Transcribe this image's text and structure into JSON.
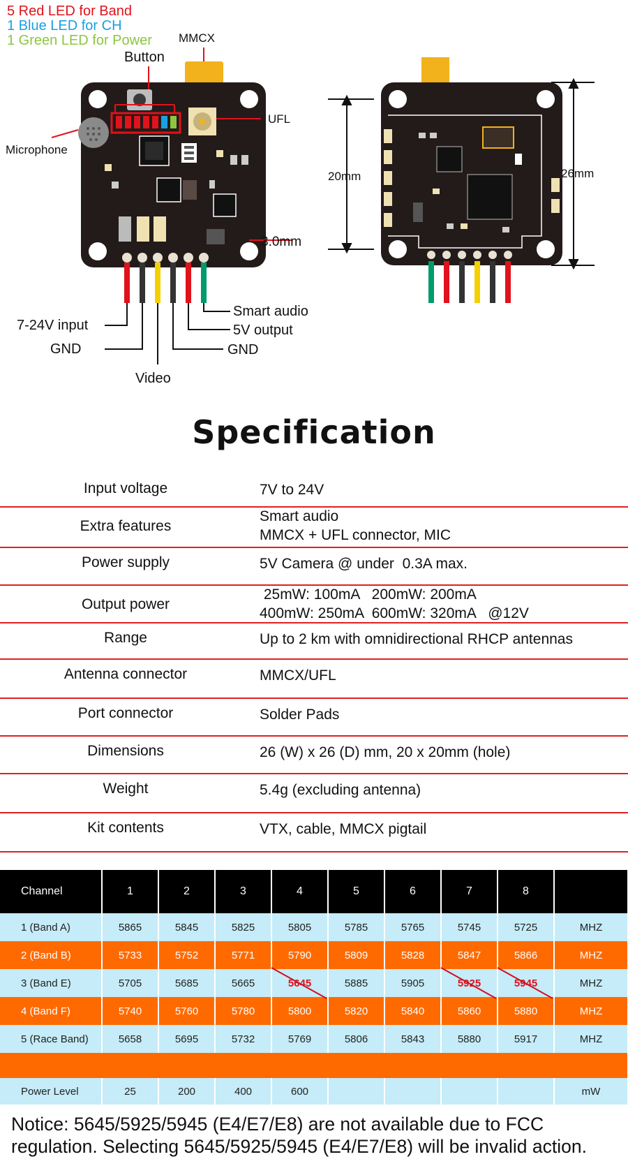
{
  "legend": {
    "red_leds": "5 Red LED for Band",
    "blue_led": "1 Blue LED for CH",
    "green_led": "1 Green LED for Power"
  },
  "callouts": {
    "mmcx": "MMCX",
    "button": "Button",
    "ufl": "UFL",
    "microphone": "Microphone",
    "hole_size": "3.0mm",
    "dim_20": "20mm",
    "dim_26": "26mm"
  },
  "wire_labels": {
    "input": "7-24V input",
    "gnd_left": "GND",
    "video": "Video",
    "smart_audio": "Smart audio",
    "output_5v": "5V output",
    "gnd_right": "GND"
  },
  "colors": {
    "legend_red": "#e0121b",
    "legend_blue": "#1a9fe0",
    "legend_green": "#8cc63f",
    "separator": "#e02020",
    "table_header": "#000000",
    "row_light": "#c5ecf8",
    "row_orange": "#ff6a00"
  },
  "spec": {
    "title": "Specification",
    "rows": [
      {
        "key": "Input voltage",
        "value": "7V to 24V"
      },
      {
        "key": "Extra features",
        "value": "Smart audio\nMMCX + UFL connector, MIC"
      },
      {
        "key": "Power supply",
        "value": "5V Camera @ under  0.3A max."
      },
      {
        "key": "Output power",
        "value": " 25mW: 100mA   200mW: 200mA\n400mW: 250mA  600mW: 320mA   @12V"
      },
      {
        "key": "Range",
        "value": "Up to 2 km with omnidirectional RHCP antennas"
      },
      {
        "key": "Antenna connector",
        "value": "MMCX/UFL"
      },
      {
        "key": "Port connector",
        "value": "Solder Pads"
      },
      {
        "key": "Dimensions",
        "value": "26 (W) x 26 (D) mm, 20 x 20mm (hole)"
      },
      {
        "key": "Weight",
        "value": "5.4g (excluding antenna)"
      },
      {
        "key": "Kit contents",
        "value": "VTX, cable, MMCX pigtail"
      }
    ]
  },
  "channel_table": {
    "header": [
      "Channel",
      "1",
      "2",
      "3",
      "4",
      "5",
      "6",
      "7",
      "8",
      ""
    ],
    "rows": [
      [
        "1 (Band A)",
        "5865",
        "5845",
        "5825",
        "5805",
        "5785",
        "5765",
        "5745",
        "5725",
        "MHZ"
      ],
      [
        "2 (Band B)",
        "5733",
        "5752",
        "5771",
        "5790",
        "5809",
        "5828",
        "5847",
        "5866",
        "MHZ"
      ],
      [
        "3 (Band E)",
        "5705",
        "5685",
        "5665",
        "5645",
        "5885",
        "5905",
        "5925",
        "5945",
        "MHZ"
      ],
      [
        "4 (Band F)",
        "5740",
        "5760",
        "5780",
        "5800",
        "5820",
        "5840",
        "5860",
        "5880",
        "MHZ"
      ],
      [
        "5 (Race Band)",
        "5658",
        "5695",
        "5732",
        "5769",
        "5806",
        "5843",
        "5880",
        "5917",
        "MHZ"
      ]
    ],
    "power_row": [
      "Power Level",
      "25",
      "200",
      "400",
      "600",
      "",
      "",
      "",
      "",
      "mW"
    ]
  },
  "notice": "Notice: 5645/5925/5945 (E4/E7/E8) are not available due to FCC regulation. Selecting 5645/5925/5945 (E4/E7/E8) will be invalid action."
}
